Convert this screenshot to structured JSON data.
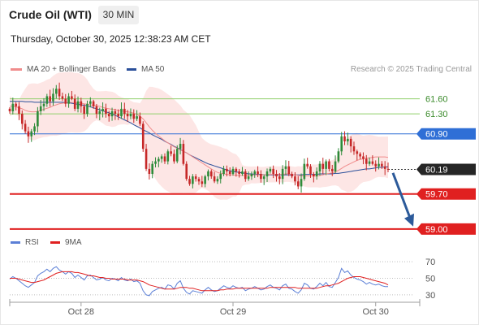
{
  "header": {
    "instrument": "Crude Oil (WTI)",
    "timeframe": "30 MIN",
    "timestamp": "Thursday, October 30, 2025 12:38:23 AM CET"
  },
  "legend": {
    "ma20": "MA 20 + Bollinger Bands",
    "ma50": "MA 50",
    "credit": "Research © 2025 Trading Central",
    "rsi": "RSI",
    "rsi_ma": "9MA"
  },
  "colors": {
    "ma20": "#f08c8c",
    "ma50": "#2a4f9a",
    "band_fill": "#fde2e0",
    "up": "#2e8b3a",
    "down": "#c62828",
    "resistance": "#8fcf6a",
    "pivot": "#2f6fd6",
    "support": "#e02020",
    "arrow": "#2c5a9a",
    "last_tag": "#262626"
  },
  "chart_data": [
    {
      "type": "candlestick",
      "ylim": [
        58.9,
        61.95
      ],
      "x_tick_labels": [
        "Oct 28",
        "Oct 29",
        "Oct 30"
      ],
      "levels": [
        {
          "value": 61.6,
          "label": "61.60",
          "kind": "resistance"
        },
        {
          "value": 61.3,
          "label": "61.30",
          "kind": "resistance"
        },
        {
          "value": 60.9,
          "label": "60.90",
          "kind": "pivot"
        },
        {
          "value": 60.19,
          "label": "60.19",
          "kind": "last"
        },
        {
          "value": 59.7,
          "label": "59.70",
          "kind": "support"
        },
        {
          "value": 59.0,
          "label": "59.00",
          "kind": "support"
        }
      ],
      "close": [
        61.35,
        61.5,
        61.45,
        61.3,
        61.1,
        60.95,
        60.85,
        60.95,
        61.05,
        61.35,
        61.45,
        61.5,
        61.65,
        61.55,
        61.7,
        61.8,
        61.65,
        61.6,
        61.5,
        61.65,
        61.6,
        61.4,
        61.55,
        61.45,
        61.3,
        61.5,
        61.55,
        61.45,
        61.3,
        61.35,
        61.4,
        61.3,
        61.25,
        61.35,
        61.3,
        61.25,
        61.4,
        61.3,
        61.25,
        61.3,
        61.2,
        61.25,
        61.1,
        60.6,
        60.2,
        60.1,
        60.3,
        60.35,
        60.4,
        60.45,
        60.35,
        60.55,
        60.5,
        60.35,
        60.6,
        60.7,
        60.3,
        60.0,
        59.9,
        60.05,
        60.0,
        59.95,
        59.9,
        60.05,
        60.15,
        60.05,
        59.95,
        60.0,
        60.1,
        60.2,
        60.15,
        60.1,
        60.2,
        60.15,
        60.1,
        60.15,
        60.0,
        60.05,
        60.1,
        60.15,
        60.1,
        60.0,
        60.05,
        60.15,
        60.2,
        60.1,
        60.05,
        60.0,
        60.2,
        60.25,
        60.1,
        60.05,
        59.95,
        59.85,
        60.0,
        60.3,
        60.25,
        60.1,
        60.05,
        60.15,
        60.3,
        60.2,
        60.35,
        60.2,
        60.15,
        60.35,
        60.55,
        60.85,
        60.75,
        60.8,
        60.65,
        60.55,
        60.5,
        60.45,
        60.4,
        60.3,
        60.35,
        60.3,
        60.25,
        60.3,
        60.25,
        60.2,
        60.19
      ],
      "ma20": [
        61.45,
        61.45,
        61.44,
        61.42,
        61.4,
        61.37,
        61.35,
        61.34,
        61.34,
        61.35,
        61.37,
        61.39,
        61.41,
        61.43,
        61.46,
        61.48,
        61.5,
        61.51,
        61.52,
        61.53,
        61.53,
        61.52,
        61.52,
        61.51,
        61.5,
        61.49,
        61.48,
        61.47,
        61.46,
        61.45,
        61.43,
        61.41,
        61.4,
        61.39,
        61.38,
        61.37,
        61.36,
        61.35,
        61.34,
        61.33,
        61.31,
        61.29,
        61.25,
        61.2,
        61.12,
        61.04,
        60.97,
        60.91,
        60.86,
        60.81,
        60.76,
        60.72,
        60.68,
        60.64,
        60.61,
        60.58,
        60.55,
        60.52,
        60.48,
        60.44,
        60.4,
        60.36,
        60.32,
        60.28,
        60.24,
        60.2,
        60.16,
        60.13,
        60.11,
        60.1,
        60.09,
        60.08,
        60.08,
        60.07,
        60.07,
        60.07,
        60.07,
        60.07,
        60.08,
        60.08,
        60.08,
        60.08,
        60.08,
        60.09,
        60.09,
        60.09,
        60.09,
        60.09,
        60.09,
        60.1,
        60.1,
        60.09,
        60.08,
        60.07,
        60.06,
        60.06,
        60.06,
        60.06,
        60.06,
        60.06,
        60.07,
        60.08,
        60.1,
        60.11,
        60.12,
        60.14,
        60.17,
        60.21,
        60.25,
        60.28,
        60.31,
        60.34,
        60.37,
        60.39,
        60.4,
        60.41,
        60.42,
        60.43,
        60.44,
        60.44,
        60.44,
        60.44,
        60.43
      ],
      "ma50": [
        61.55,
        61.55,
        61.55,
        61.55,
        61.55,
        61.54,
        61.54,
        61.54,
        61.53,
        61.53,
        61.53,
        61.53,
        61.53,
        61.53,
        61.53,
        61.53,
        61.53,
        61.53,
        61.52,
        61.52,
        61.51,
        61.5,
        61.49,
        61.48,
        61.47,
        61.46,
        61.44,
        61.42,
        61.4,
        61.38,
        61.36,
        61.34,
        61.32,
        61.3,
        61.27,
        61.24,
        61.21,
        61.18,
        61.15,
        61.12,
        61.08,
        61.05,
        61.02,
        60.98,
        60.95,
        60.92,
        60.88,
        60.85,
        60.82,
        60.79,
        60.75,
        60.72,
        60.69,
        60.65,
        60.62,
        60.59,
        60.55,
        60.52,
        60.48,
        60.45,
        60.42,
        60.39,
        60.36,
        60.33,
        60.3,
        60.28,
        60.26,
        60.24,
        60.22,
        60.2,
        60.18,
        60.16,
        60.15,
        60.14,
        60.13,
        60.12,
        60.11,
        60.1,
        60.1,
        60.09,
        60.09,
        60.09,
        60.08,
        60.08,
        60.08,
        60.08,
        60.08,
        60.08,
        60.08,
        60.08,
        60.08,
        60.08,
        60.08,
        60.08,
        60.08,
        60.09,
        60.09,
        60.09,
        60.09,
        60.09,
        60.1,
        60.1,
        60.1,
        60.1,
        60.1,
        60.11,
        60.11,
        60.12,
        60.13,
        60.14,
        60.15,
        60.16,
        60.17,
        60.18,
        60.19,
        60.2,
        60.2,
        60.21,
        60.22,
        60.23,
        60.23,
        60.24,
        60.24
      ]
    },
    {
      "type": "line",
      "ylim": [
        25,
        78
      ],
      "y_ticks": [
        70,
        50,
        30
      ],
      "series": [
        {
          "name": "RSI",
          "values": [
            49,
            52,
            50,
            47,
            44,
            41,
            39,
            42,
            45,
            53,
            56,
            58,
            61,
            58,
            62,
            64,
            60,
            58,
            55,
            58,
            56,
            51,
            54,
            51,
            48,
            53,
            54,
            51,
            48,
            49,
            51,
            48,
            47,
            50,
            49,
            47,
            51,
            48,
            47,
            49,
            46,
            47,
            44,
            35,
            30,
            29,
            34,
            36,
            38,
            39,
            37,
            42,
            41,
            37,
            44,
            47,
            38,
            33,
            31,
            35,
            34,
            33,
            32,
            36,
            39,
            36,
            34,
            35,
            38,
            41,
            39,
            38,
            41,
            39,
            38,
            39,
            35,
            37,
            38,
            40,
            38,
            36,
            37,
            40,
            42,
            39,
            38,
            36,
            41,
            43,
            38,
            37,
            34,
            32,
            36,
            44,
            42,
            38,
            37,
            40,
            44,
            41,
            45,
            40,
            39,
            45,
            51,
            62,
            57,
            59,
            54,
            51,
            49,
            48,
            46,
            43,
            45,
            43,
            42,
            43,
            41,
            40,
            40
          ]
        },
        {
          "name": "9MA",
          "values": [
            50,
            50,
            50,
            49,
            48,
            47,
            46,
            45,
            45,
            46,
            47,
            48,
            50,
            52,
            54,
            56,
            57,
            58,
            58,
            58,
            58,
            57,
            57,
            56,
            55,
            54,
            53,
            53,
            52,
            51,
            51,
            50,
            50,
            49,
            49,
            49,
            49,
            49,
            48,
            48,
            48,
            48,
            47,
            46,
            44,
            42,
            41,
            40,
            39,
            38,
            37,
            37,
            37,
            37,
            38,
            39,
            39,
            39,
            38,
            38,
            37,
            36,
            35,
            35,
            35,
            35,
            35,
            35,
            36,
            36,
            37,
            37,
            37,
            38,
            38,
            38,
            38,
            38,
            38,
            38,
            38,
            38,
            38,
            38,
            39,
            39,
            39,
            39,
            39,
            39,
            39,
            39,
            39,
            38,
            38,
            38,
            38,
            38,
            38,
            38,
            39,
            40,
            41,
            41,
            42,
            43,
            44,
            46,
            48,
            50,
            51,
            52,
            52,
            52,
            51,
            50,
            49,
            48,
            47,
            46,
            45,
            44,
            42
          ]
        }
      ]
    }
  ]
}
